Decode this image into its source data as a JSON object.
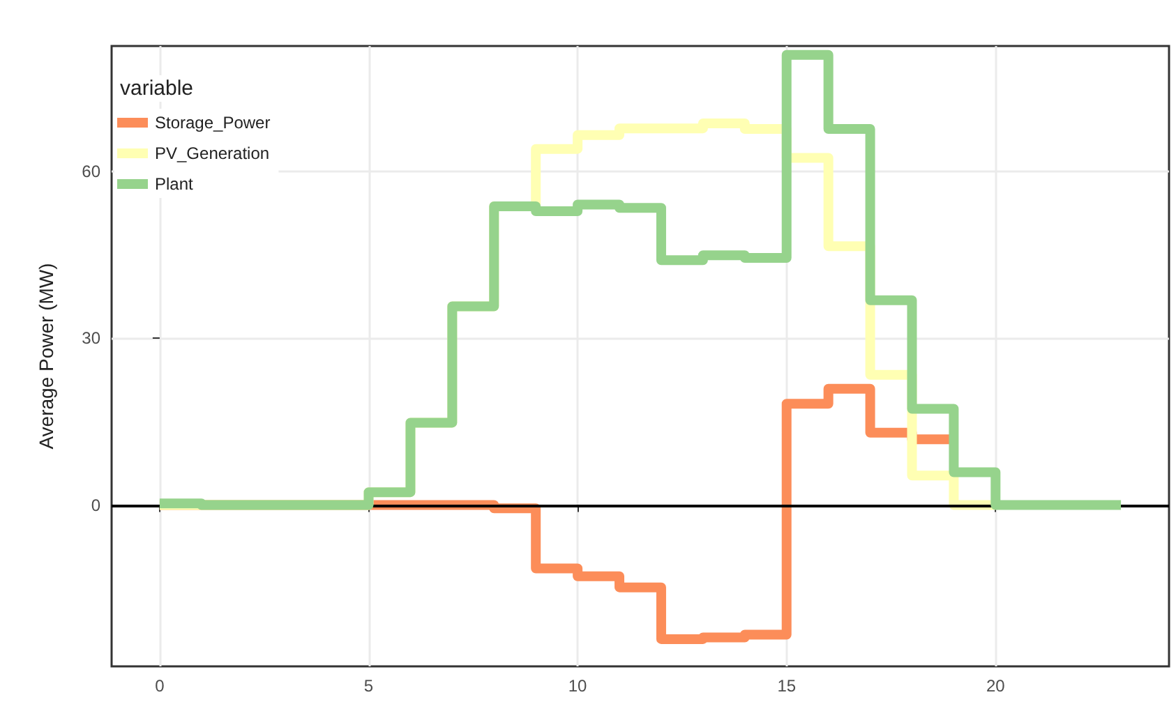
{
  "chart_data": {
    "type": "step",
    "ylabel": "Average Power (MW)",
    "legend_title": "variable",
    "x": [
      0,
      1,
      2,
      3,
      4,
      5,
      6,
      7,
      8,
      9,
      10,
      11,
      12,
      13,
      14,
      15,
      16,
      17,
      18,
      19,
      20,
      21,
      22,
      23
    ],
    "series": [
      {
        "name": "Storage_Power",
        "color": "#fc8d59",
        "x": [
          0,
          1,
          2,
          3,
          4,
          5,
          6,
          7,
          8,
          9,
          10,
          11,
          12,
          13,
          14,
          15,
          16,
          17,
          18,
          19
        ],
        "values": [
          0,
          0,
          0,
          0,
          0,
          0,
          0,
          0,
          -0.6,
          -11.4,
          -12.8,
          -14.8,
          -24.1,
          -23.8,
          -23.3,
          18.2,
          20.9,
          13,
          11.8,
          11.8
        ]
      },
      {
        "name": "PV_Generation",
        "color": "#ffffb3",
        "x": [
          0,
          1,
          2,
          3,
          4,
          5,
          6,
          7,
          8,
          9,
          10,
          11,
          12,
          13,
          14,
          15,
          16,
          17,
          18,
          19,
          20
        ],
        "values": [
          0,
          0,
          0,
          0,
          0,
          2.3,
          14.8,
          35.7,
          53.7,
          64,
          66.5,
          67.7,
          67.7,
          68.6,
          67.6,
          62.4,
          46.5,
          23.4,
          5.3,
          0,
          0
        ]
      },
      {
        "name": "Plant",
        "color": "#96d38c",
        "values": [
          0.3,
          0,
          0,
          0,
          0,
          2.3,
          14.8,
          35.7,
          53.7,
          52.8,
          54,
          53.4,
          44,
          44.9,
          44.4,
          80.9,
          67.6,
          36.8,
          17.3,
          5.9,
          0,
          0,
          0,
          0
        ]
      }
    ],
    "xlim": [
      -1.15,
      24.15
    ],
    "xticks": [
      0,
      5,
      10,
      15,
      20
    ],
    "ylim": [
      -29,
      82.5
    ],
    "yticks": [
      0,
      30,
      60
    ],
    "ref_lines": [
      {
        "axis": "y",
        "value": 0,
        "color": "#000000"
      }
    ],
    "grid": true,
    "legend": "top left",
    "marker": "none",
    "line_style": "solid"
  }
}
